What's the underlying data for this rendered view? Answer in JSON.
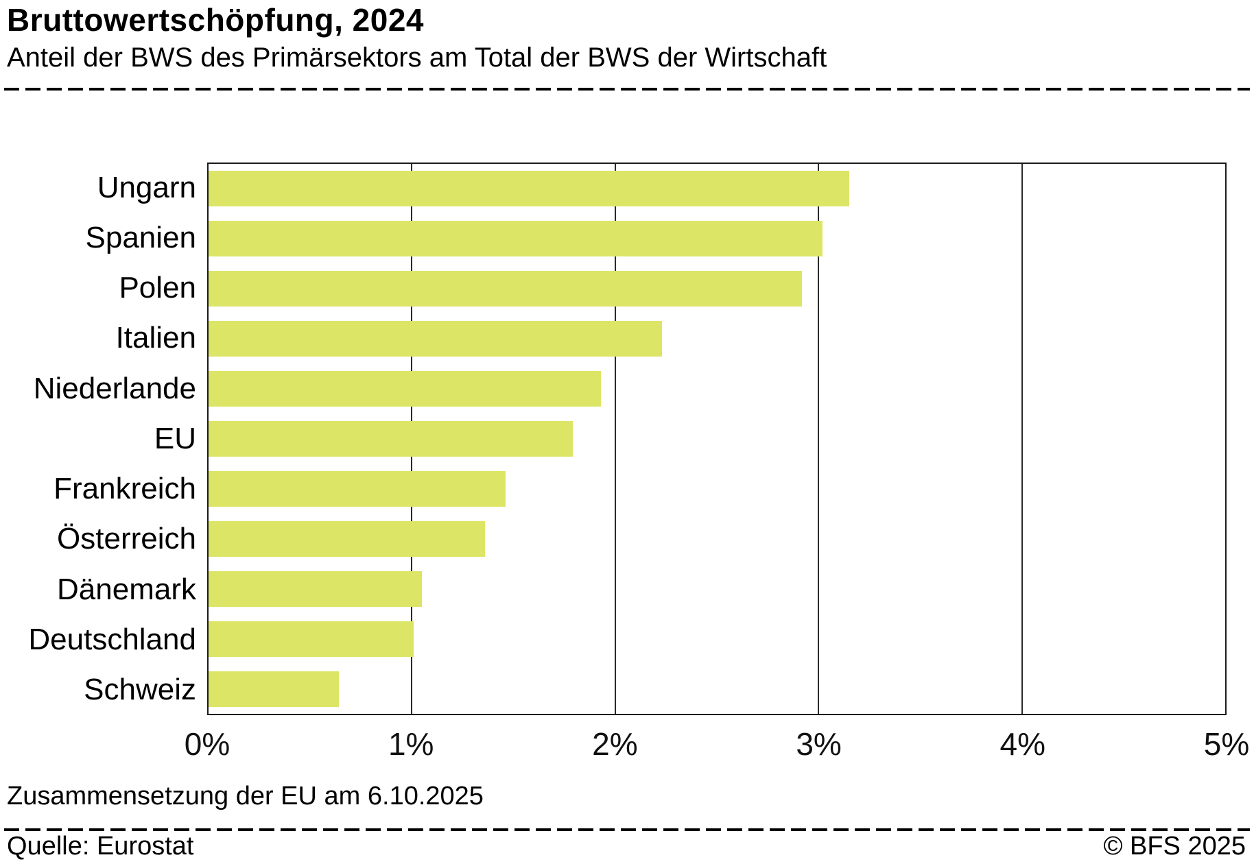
{
  "header": {
    "title": "Bruttowertschöpfung, 2024",
    "subtitle": "Anteil der BWS des Primärsektors am Total der BWS der Wirtschaft"
  },
  "footer": {
    "footnote": "Zusammensetzung der EU am 6.10.2025",
    "source": "Quelle: Eurostat",
    "copyright": "© BFS 2025"
  },
  "chart_data": {
    "type": "bar",
    "orientation": "horizontal",
    "title": "Bruttowertschöpfung, 2024",
    "subtitle": "Anteil der BWS des Primärsektors am Total der BWS der Wirtschaft",
    "categories": [
      "Ungarn",
      "Spanien",
      "Polen",
      "Italien",
      "Niederlande",
      "EU",
      "Frankreich",
      "Österreich",
      "Dänemark",
      "Deutschland",
      "Schweiz"
    ],
    "values": [
      3.15,
      3.02,
      2.92,
      2.23,
      1.93,
      1.79,
      1.46,
      1.36,
      1.05,
      1.01,
      0.64
    ],
    "unit": "%",
    "xlim": [
      0,
      5
    ],
    "x_ticks": [
      "0%",
      "1%",
      "2%",
      "3%",
      "4%",
      "5%"
    ],
    "x_tick_values": [
      0,
      1,
      2,
      3,
      4,
      5
    ],
    "bar_color": "#dce566",
    "grid": true,
    "legend": "none"
  }
}
